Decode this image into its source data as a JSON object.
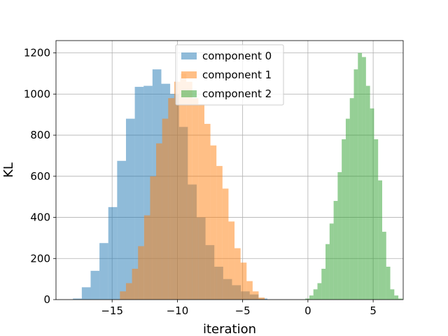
{
  "chart_data": {
    "type": "histogram",
    "title": "",
    "xlabel": "iteration",
    "ylabel": "KL",
    "xlim": [
      -19.3,
      7.3
    ],
    "ylim": [
      0,
      1260
    ],
    "xticks": [
      -15,
      -10,
      -5,
      0,
      5
    ],
    "yticks": [
      0,
      200,
      400,
      600,
      800,
      1000,
      1200
    ],
    "grid": true,
    "legend_position": "top-center",
    "series": [
      {
        "name": "component 0",
        "color": "#1f77b4",
        "opacity": 0.5,
        "bin_width": 0.677,
        "start": -18.0,
        "counts": [
          5,
          60,
          140,
          275,
          450,
          675,
          880,
          1035,
          1040,
          1120,
          1050,
          1000,
          840,
          560,
          400,
          265,
          160,
          100,
          70,
          40,
          25,
          5
        ]
      },
      {
        "name": "component 1",
        "color": "#ff7f0e",
        "opacity": 0.5,
        "bin_width": 0.462,
        "start": -14.4,
        "counts": [
          40,
          80,
          150,
          260,
          410,
          600,
          760,
          880,
          980,
          1060,
          1100,
          1060,
          980,
          950,
          855,
          750,
          650,
          540,
          380,
          250,
          180,
          90,
          40,
          10
        ]
      },
      {
        "name": "component 2",
        "color": "#2ca02c",
        "opacity": 0.5,
        "bin_width": 0.31,
        "start": -0.2,
        "counts": [
          5,
          20,
          50,
          80,
          150,
          270,
          370,
          480,
          620,
          780,
          880,
          980,
          1120,
          1200,
          1180,
          1040,
          930,
          780,
          580,
          330,
          160,
          50,
          20,
          5
        ]
      }
    ]
  }
}
